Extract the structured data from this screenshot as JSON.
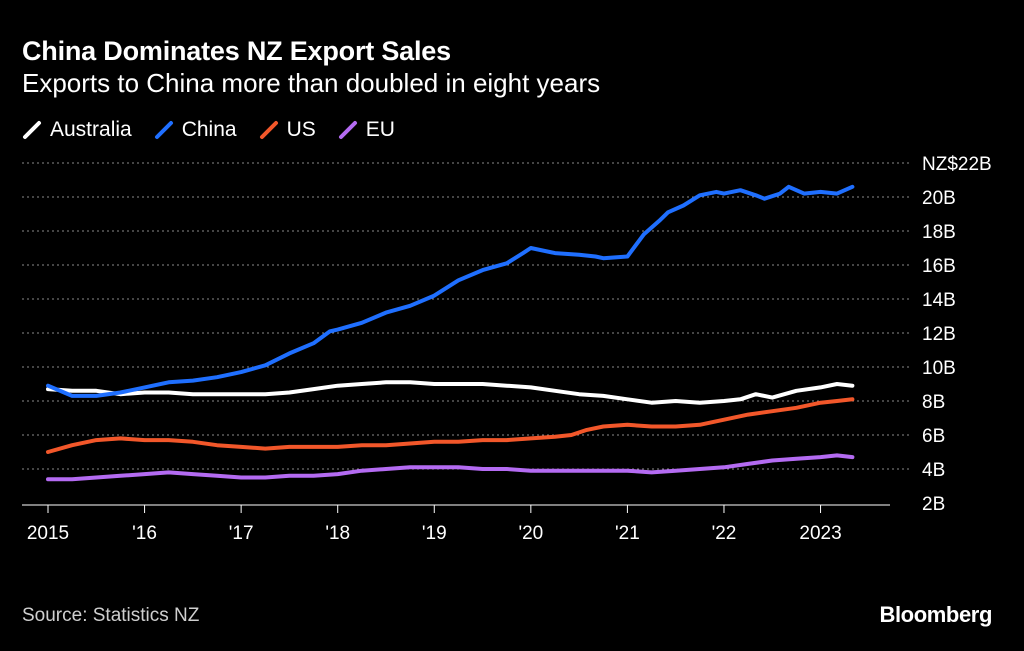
{
  "header": {
    "title": "China Dominates NZ Export Sales",
    "subtitle": "Exports to China more than doubled in eight years"
  },
  "legend": [
    {
      "label": "Australia",
      "color": "#ffffff"
    },
    {
      "label": "China",
      "color": "#1f6fff"
    },
    {
      "label": "US",
      "color": "#f2572a"
    },
    {
      "label": "EU",
      "color": "#b46bf2"
    }
  ],
  "footer": {
    "source": "Source: Statistics NZ",
    "brand": "Bloomberg"
  },
  "chart_data": {
    "type": "line",
    "title": "China Dominates NZ Export Sales",
    "subtitle": "Exports to China more than doubled in eight years",
    "xlabel": "",
    "ylabel": "NZ$ billions",
    "xlim": [
      2015.0,
      2023.45
    ],
    "ylim": [
      2,
      22
    ],
    "grid": true,
    "legend_position": "top-left",
    "x_ticks": [
      {
        "value": 2015,
        "label": "2015"
      },
      {
        "value": 2016,
        "label": "'16"
      },
      {
        "value": 2017,
        "label": "'17"
      },
      {
        "value": 2018,
        "label": "'18"
      },
      {
        "value": 2019,
        "label": "'19"
      },
      {
        "value": 2020,
        "label": "'20"
      },
      {
        "value": 2021,
        "label": "'21"
      },
      {
        "value": 2022,
        "label": "'22"
      },
      {
        "value": 2023,
        "label": "2023"
      }
    ],
    "y_ticks": [
      {
        "value": 22,
        "label": "NZ$22B"
      },
      {
        "value": 20,
        "label": "20B"
      },
      {
        "value": 18,
        "label": "18B"
      },
      {
        "value": 16,
        "label": "16B"
      },
      {
        "value": 14,
        "label": "14B"
      },
      {
        "value": 12,
        "label": "12B"
      },
      {
        "value": 10,
        "label": "10B"
      },
      {
        "value": 8,
        "label": "8B"
      },
      {
        "value": 6,
        "label": "6B"
      },
      {
        "value": 4,
        "label": "4B"
      },
      {
        "value": 2,
        "label": "2B"
      }
    ],
    "series": [
      {
        "name": "China",
        "color": "#1f6fff",
        "x": [
          2015.0,
          2015.25,
          2015.5,
          2015.75,
          2016.0,
          2016.25,
          2016.5,
          2016.75,
          2017.0,
          2017.25,
          2017.5,
          2017.75,
          2017.92,
          2018.0,
          2018.25,
          2018.5,
          2018.75,
          2019.0,
          2019.25,
          2019.5,
          2019.75,
          2019.92,
          2020.0,
          2020.25,
          2020.5,
          2020.67,
          2020.75,
          2021.0,
          2021.17,
          2021.33,
          2021.42,
          2021.58,
          2021.75,
          2021.92,
          2022.0,
          2022.17,
          2022.33,
          2022.42,
          2022.58,
          2022.67,
          2022.83,
          2023.0,
          2023.17,
          2023.33
        ],
        "values": [
          8.9,
          8.3,
          8.3,
          8.5,
          8.8,
          9.1,
          9.2,
          9.4,
          9.7,
          10.1,
          10.8,
          11.4,
          12.1,
          12.2,
          12.6,
          13.2,
          13.6,
          14.2,
          15.1,
          15.7,
          16.1,
          16.7,
          17.0,
          16.7,
          16.6,
          16.5,
          16.4,
          16.5,
          17.8,
          18.6,
          19.1,
          19.5,
          20.1,
          20.3,
          20.2,
          20.4,
          20.1,
          19.9,
          20.2,
          20.6,
          20.2,
          20.3,
          20.2,
          20.6
        ]
      },
      {
        "name": "Australia",
        "color": "#ffffff",
        "x": [
          2015.0,
          2015.25,
          2015.5,
          2015.75,
          2016.0,
          2016.25,
          2016.5,
          2016.75,
          2017.0,
          2017.25,
          2017.5,
          2017.75,
          2018.0,
          2018.25,
          2018.5,
          2018.75,
          2019.0,
          2019.25,
          2019.5,
          2019.75,
          2020.0,
          2020.25,
          2020.5,
          2020.75,
          2021.0,
          2021.25,
          2021.5,
          2021.75,
          2022.0,
          2022.17,
          2022.33,
          2022.5,
          2022.75,
          2023.0,
          2023.17,
          2023.33
        ],
        "values": [
          8.7,
          8.6,
          8.6,
          8.4,
          8.5,
          8.5,
          8.4,
          8.4,
          8.4,
          8.4,
          8.5,
          8.7,
          8.9,
          9.0,
          9.1,
          9.1,
          9.0,
          9.0,
          9.0,
          8.9,
          8.8,
          8.6,
          8.4,
          8.3,
          8.1,
          7.9,
          8.0,
          7.9,
          8.0,
          8.1,
          8.4,
          8.2,
          8.6,
          8.8,
          9.0,
          8.9
        ]
      },
      {
        "name": "US",
        "color": "#f2572a",
        "x": [
          2015.0,
          2015.25,
          2015.5,
          2015.75,
          2016.0,
          2016.25,
          2016.5,
          2016.75,
          2017.0,
          2017.25,
          2017.5,
          2017.75,
          2018.0,
          2018.25,
          2018.5,
          2018.75,
          2019.0,
          2019.25,
          2019.5,
          2019.75,
          2020.0,
          2020.25,
          2020.42,
          2020.58,
          2020.75,
          2021.0,
          2021.25,
          2021.5,
          2021.75,
          2022.0,
          2022.25,
          2022.5,
          2022.75,
          2023.0,
          2023.17,
          2023.33
        ],
        "values": [
          5.0,
          5.4,
          5.7,
          5.8,
          5.7,
          5.7,
          5.6,
          5.4,
          5.3,
          5.2,
          5.3,
          5.3,
          5.3,
          5.4,
          5.4,
          5.5,
          5.6,
          5.6,
          5.7,
          5.7,
          5.8,
          5.9,
          6.0,
          6.3,
          6.5,
          6.6,
          6.5,
          6.5,
          6.6,
          6.9,
          7.2,
          7.4,
          7.6,
          7.9,
          8.0,
          8.1
        ]
      },
      {
        "name": "EU",
        "color": "#b46bf2",
        "x": [
          2015.0,
          2015.25,
          2015.5,
          2015.75,
          2016.0,
          2016.25,
          2016.5,
          2016.75,
          2017.0,
          2017.25,
          2017.5,
          2017.75,
          2018.0,
          2018.25,
          2018.5,
          2018.75,
          2019.0,
          2019.25,
          2019.5,
          2019.75,
          2020.0,
          2020.25,
          2020.5,
          2020.75,
          2021.0,
          2021.25,
          2021.5,
          2021.75,
          2022.0,
          2022.25,
          2022.5,
          2022.75,
          2023.0,
          2023.17,
          2023.33
        ],
        "values": [
          3.4,
          3.4,
          3.5,
          3.6,
          3.7,
          3.8,
          3.7,
          3.6,
          3.5,
          3.5,
          3.6,
          3.6,
          3.7,
          3.9,
          4.0,
          4.1,
          4.1,
          4.1,
          4.0,
          4.0,
          3.9,
          3.9,
          3.9,
          3.9,
          3.9,
          3.8,
          3.9,
          4.0,
          4.1,
          4.3,
          4.5,
          4.6,
          4.7,
          4.8,
          4.7
        ]
      }
    ]
  }
}
